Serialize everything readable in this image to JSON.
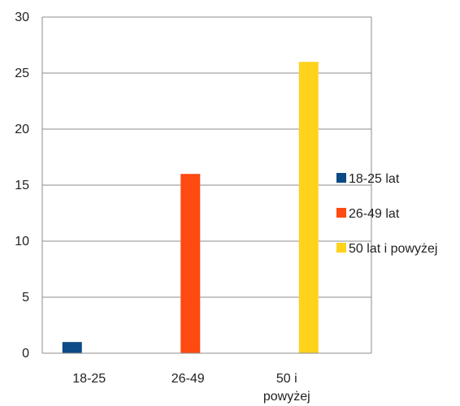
{
  "chart_data": {
    "type": "bar",
    "categories": [
      "18-25",
      "26-49",
      "50 i powyżej"
    ],
    "category_label_lines": [
      [
        "18-25"
      ],
      [
        "26-49"
      ],
      [
        "50 i",
        "powyżej"
      ]
    ],
    "series": [
      {
        "name": "18-25 lat",
        "color": "#0b4a84",
        "values": [
          1,
          0,
          0
        ]
      },
      {
        "name": "26-49 lat",
        "color": "#ff4a12",
        "values": [
          0,
          16,
          0
        ]
      },
      {
        "name": "50 lat i powyżej",
        "color": "#ffd21c",
        "values": [
          0,
          0,
          26
        ]
      }
    ],
    "title": "",
    "xlabel": "",
    "ylabel": "",
    "ylim": [
      0,
      30
    ],
    "yticks": [
      0,
      5,
      10,
      15,
      20,
      25,
      30
    ],
    "grid": true,
    "legend_position": "right"
  }
}
